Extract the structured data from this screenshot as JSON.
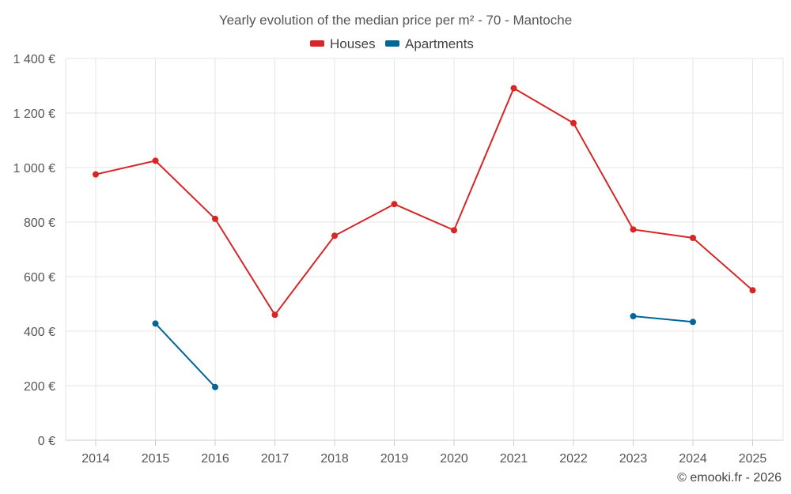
{
  "chart_data": {
    "type": "line",
    "title": "Yearly evolution of the median price per m² - 70 - Mantoche",
    "categories": [
      "2014",
      "2015",
      "2016",
      "2017",
      "2018",
      "2019",
      "2020",
      "2021",
      "2022",
      "2023",
      "2024",
      "2025"
    ],
    "ylim": [
      0,
      1400
    ],
    "yticks": [
      0,
      200,
      400,
      600,
      800,
      1000,
      1200,
      1400
    ],
    "ytick_labels": [
      "0 €",
      "200 €",
      "400 €",
      "600 €",
      "800 €",
      "1 000 €",
      "1 200 €",
      "1 400 €"
    ],
    "grid": true,
    "legend_position": "top-center",
    "series": [
      {
        "name": "Houses",
        "color": "#d62728",
        "values": [
          975,
          1025,
          812,
          460,
          750,
          866,
          770,
          1291,
          1163,
          773,
          742,
          550
        ]
      },
      {
        "name": "Apartments",
        "color": "#006699",
        "values": [
          null,
          428,
          195,
          null,
          null,
          null,
          null,
          null,
          null,
          455,
          434,
          null
        ]
      }
    ]
  },
  "credit": "© emooki.fr - 2026"
}
